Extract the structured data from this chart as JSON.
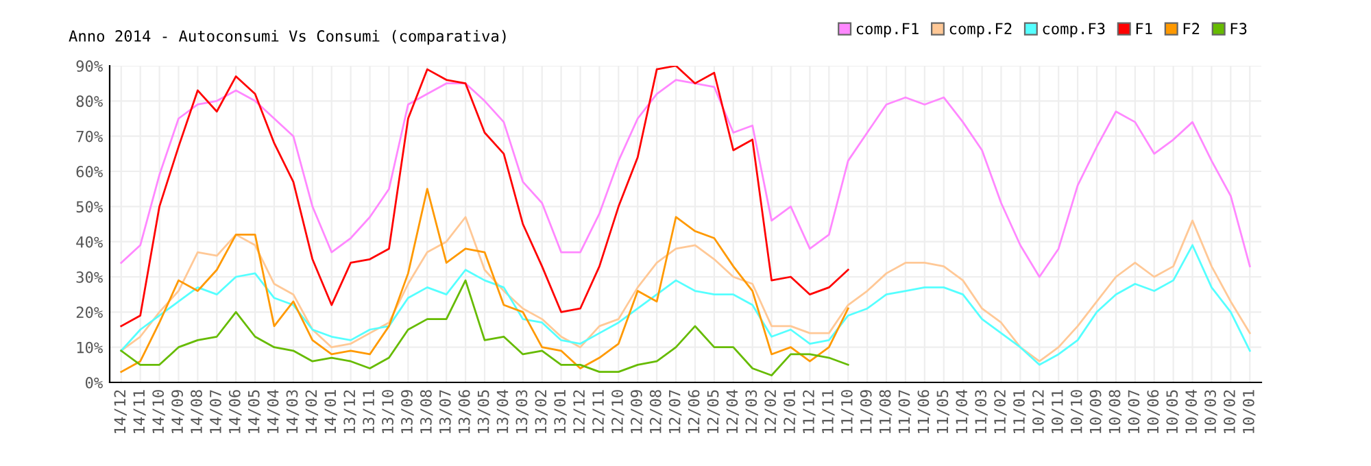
{
  "chart_data": {
    "type": "line",
    "title": "Anno 2014 - Autoconsumi Vs Consumi (comparativa)",
    "categories": [
      "14/12",
      "14/11",
      "14/10",
      "14/09",
      "14/08",
      "14/07",
      "14/06",
      "14/05",
      "14/04",
      "14/03",
      "14/02",
      "14/01",
      "13/12",
      "13/11",
      "13/10",
      "13/09",
      "13/08",
      "13/07",
      "13/06",
      "13/05",
      "13/04",
      "13/03",
      "13/02",
      "13/01",
      "12/12",
      "12/11",
      "12/10",
      "12/09",
      "12/08",
      "12/07",
      "12/06",
      "12/05",
      "12/04",
      "12/03",
      "12/02",
      "12/01",
      "11/12",
      "11/11",
      "11/10",
      "11/09",
      "11/08",
      "11/07",
      "11/06",
      "11/05",
      "11/04",
      "11/03",
      "11/02",
      "11/01",
      "10/12",
      "10/11",
      "10/10",
      "10/09",
      "10/08",
      "10/07",
      "10/06",
      "10/05",
      "10/04",
      "10/03",
      "10/02",
      "10/01"
    ],
    "series": [
      {
        "name": "comp.F1",
        "color": "#ff88ff",
        "values": [
          34,
          39,
          59,
          75,
          79,
          80,
          83,
          80,
          75,
          70,
          50,
          37,
          41,
          47,
          55,
          79,
          82,
          85,
          85,
          80,
          74,
          57,
          51,
          37,
          37,
          48,
          63,
          75,
          82,
          86,
          85,
          84,
          71,
          73,
          46,
          50,
          38,
          42,
          63,
          71,
          79,
          81,
          79,
          81,
          74,
          66,
          51,
          39,
          30,
          38,
          56,
          67,
          77,
          74,
          65,
          69,
          74,
          63,
          53,
          33
        ]
      },
      {
        "name": "comp.F2",
        "color": "#ffc896",
        "values": [
          9,
          13,
          20,
          26,
          37,
          36,
          42,
          39,
          28,
          25,
          15,
          10,
          11,
          14,
          17,
          28,
          37,
          40,
          47,
          32,
          26,
          21,
          18,
          13,
          10,
          16,
          18,
          27,
          34,
          38,
          39,
          35,
          30,
          28,
          16,
          16,
          14,
          14,
          22,
          26,
          31,
          34,
          34,
          33,
          29,
          21,
          17,
          10,
          6,
          10,
          16,
          23,
          30,
          34,
          30,
          33,
          46,
          33,
          23,
          14
        ]
      },
      {
        "name": "comp.F3",
        "color": "#55ffff",
        "values": [
          9,
          15,
          19,
          23,
          27,
          25,
          30,
          31,
          24,
          22,
          15,
          13,
          12,
          15,
          16,
          24,
          27,
          25,
          32,
          29,
          27,
          18,
          17,
          12,
          11,
          14,
          17,
          21,
          25,
          29,
          26,
          25,
          25,
          22,
          13,
          15,
          11,
          12,
          19,
          21,
          25,
          26,
          27,
          27,
          25,
          18,
          14,
          10,
          5,
          8,
          12,
          20,
          25,
          28,
          26,
          29,
          39,
          27,
          20,
          9
        ]
      },
      {
        "name": "F1",
        "color": "#ff0000",
        "values": [
          16,
          19,
          50,
          67,
          83,
          77,
          87,
          82,
          68,
          57,
          35,
          22,
          34,
          35,
          38,
          75,
          89,
          86,
          85,
          71,
          65,
          45,
          33,
          20,
          21,
          33,
          50,
          64,
          89,
          90,
          85,
          88,
          66,
          69,
          29,
          30,
          25,
          27,
          32,
          null,
          null,
          null,
          null,
          null,
          null,
          null,
          null,
          null,
          null,
          null,
          null,
          null,
          null,
          null,
          null,
          null,
          null,
          null,
          null,
          null
        ]
      },
      {
        "name": "F2",
        "color": "#ff9900",
        "values": [
          3,
          6,
          17,
          29,
          26,
          32,
          42,
          42,
          16,
          23,
          12,
          8,
          9,
          8,
          16,
          31,
          55,
          34,
          38,
          37,
          22,
          20,
          10,
          9,
          4,
          7,
          11,
          26,
          23,
          47,
          43,
          41,
          33,
          26,
          8,
          10,
          6,
          10,
          21,
          null,
          null,
          null,
          null,
          null,
          null,
          null,
          null,
          null,
          null,
          null,
          null,
          null,
          null,
          null,
          null,
          null,
          null,
          null,
          null,
          null
        ]
      },
      {
        "name": "F3",
        "color": "#66bb00",
        "values": [
          9,
          5,
          5,
          10,
          12,
          13,
          20,
          13,
          10,
          9,
          6,
          7,
          6,
          4,
          7,
          15,
          18,
          18,
          29,
          12,
          13,
          8,
          9,
          5,
          5,
          3,
          3,
          5,
          6,
          10,
          16,
          10,
          10,
          4,
          2,
          8,
          8,
          7,
          5,
          null,
          null,
          null,
          null,
          null,
          null,
          null,
          null,
          null,
          null,
          null,
          null,
          null,
          null,
          null,
          null,
          null,
          null,
          null,
          null,
          null
        ]
      }
    ],
    "ylim": [
      0,
      90
    ],
    "yticks": [
      {
        "value": 0,
        "label": "0%"
      },
      {
        "value": 10,
        "label": "10%"
      },
      {
        "value": 20,
        "label": "20%"
      },
      {
        "value": 30,
        "label": "30%"
      },
      {
        "value": 40,
        "label": "40%"
      },
      {
        "value": 50,
        "label": "50%"
      },
      {
        "value": 60,
        "label": "60%"
      },
      {
        "value": 70,
        "label": "70%"
      },
      {
        "value": 80,
        "label": "80%"
      },
      {
        "value": 90,
        "label": "90%"
      }
    ],
    "grid": true,
    "legend": "top right",
    "marker": "none",
    "line_style": "solid"
  }
}
